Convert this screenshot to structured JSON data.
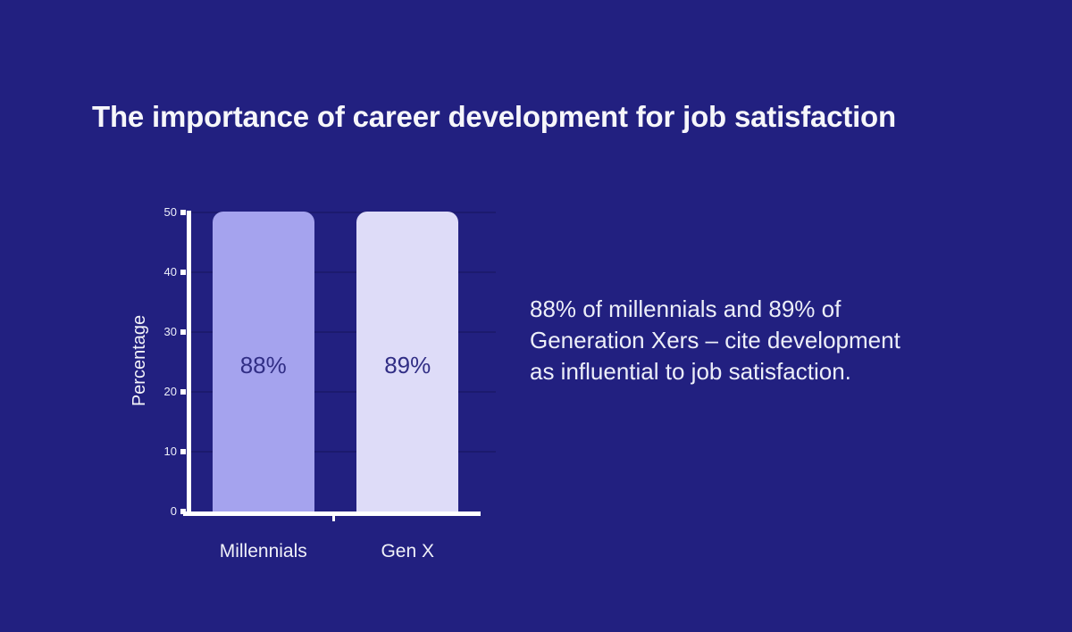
{
  "page": {
    "title": "The importance of career development for job satisfaction",
    "background_color": "#222080"
  },
  "caption": {
    "text": "88% of millennials and 89% of\nGeneration Xers – cite development\nas influential to job satisfaction."
  },
  "chart_data": {
    "type": "bar",
    "title": "The importance of career development for job satisfaction",
    "categories": [
      "Millennials",
      "Gen X"
    ],
    "values": [
      88,
      89
    ],
    "value_labels": [
      "88%",
      "89%"
    ],
    "bar_colors": [
      "#a5a3ee",
      "#dedcf8"
    ],
    "value_label_color": "#312e85",
    "xlabel": "",
    "ylabel": "Percentage",
    "yticks": [
      0,
      10,
      20,
      30,
      40,
      50
    ],
    "ylim": [
      0,
      50
    ],
    "bars_clipped_at_ymax": true,
    "grid": "faint horizontal gridlines",
    "legend_position": "none",
    "axis_color": "#ffffff"
  }
}
